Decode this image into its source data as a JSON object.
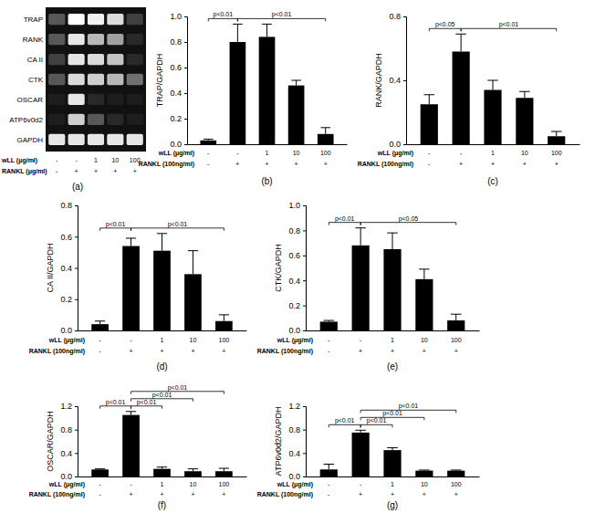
{
  "chart_data": [
    {
      "type": "gel",
      "panel": "(a)",
      "rows": [
        "TRAP",
        "RANK",
        "CA II",
        "CTK",
        "OSCAR",
        "ATP6v0d2",
        "GAPDH"
      ],
      "intensity": [
        [
          0.3,
          1,
          0.95,
          0.85,
          0.2
        ],
        [
          0.3,
          0.9,
          0.7,
          0.6,
          0.1
        ],
        [
          0.2,
          0.9,
          0.85,
          0.75,
          0.1
        ],
        [
          0.3,
          0.85,
          0.8,
          0.7,
          0.4
        ],
        [
          0.05,
          0.9,
          0.1,
          0.05,
          0.05
        ],
        [
          0.05,
          0.8,
          0.3,
          0.1,
          0.05
        ],
        [
          0.9,
          0.9,
          0.9,
          0.9,
          0.9
        ]
      ],
      "x_rows": [
        {
          "label": "wLL (μg/ml)",
          "values": [
            "-",
            "-",
            "1",
            "10",
            "100"
          ]
        },
        {
          "label": "RANKL (μg/ml)",
          "values": [
            "-",
            "+",
            "+",
            "+",
            "+"
          ]
        }
      ]
    },
    {
      "type": "bar",
      "panel": "(b)",
      "y_label": "TRAP/GAPDH",
      "color": "#000000",
      "values": [
        0.03,
        0.8,
        0.84,
        0.46,
        0.08
      ],
      "errors": [
        0.01,
        0.14,
        0.1,
        0.04,
        0.05
      ],
      "ylim": [
        0,
        1
      ],
      "yticks": [
        {
          "value": 0,
          "label": "0.0"
        },
        0.2,
        0.4,
        0.6,
        0.8,
        {
          "value": 1,
          "label": "1.0"
        }
      ],
      "x_rows": [
        {
          "label": "wLL (μg/ml)",
          "values": [
            "-",
            "-",
            "1",
            "10",
            "100"
          ]
        },
        {
          "label": "RANKL (100ng/ml)",
          "values": [
            "-",
            "+",
            "+",
            "+",
            "+"
          ]
        }
      ],
      "annotations": [
        {
          "text": "p<0.01",
          "from": 0,
          "to": 1
        },
        {
          "text": "p<0.01",
          "from": 1,
          "to": 4
        }
      ]
    },
    {
      "type": "bar",
      "panel": "(c)",
      "y_label": "RANK/GAPDH",
      "color": "#000000",
      "values": [
        0.25,
        0.58,
        0.34,
        0.29,
        0.05
      ],
      "errors": [
        0.06,
        0.11,
        0.06,
        0.04,
        0.03
      ],
      "ylim": [
        0,
        0.8
      ],
      "yticks": [
        {
          "value": 0,
          "label": "0.0"
        },
        0.4,
        0.8
      ],
      "x_rows": [
        {
          "label": "wLL (μg/ml)",
          "values": [
            "-",
            "-",
            "1",
            "10",
            "100"
          ]
        },
        {
          "label": "RANKL (100ng/ml)",
          "values": [
            "-",
            "+",
            "+",
            "+",
            "+"
          ]
        }
      ],
      "annotations": [
        {
          "text": "p<0.05",
          "from": 0,
          "to": 1
        },
        {
          "text": "p<0.01",
          "from": 1,
          "to": 4
        }
      ]
    },
    {
      "type": "bar",
      "panel": "(d)",
      "y_label": "CA II/GAPDH",
      "color": "#000000",
      "values": [
        0.04,
        0.54,
        0.51,
        0.36,
        0.06
      ],
      "errors": [
        0.02,
        0.05,
        0.11,
        0.15,
        0.04
      ],
      "ylim": [
        0,
        0.8
      ],
      "yticks": [
        {
          "value": 0,
          "label": "0.0"
        },
        0.2,
        0.4,
        0.6,
        0.8
      ],
      "x_rows": [
        {
          "label": "wLL (μg/ml)",
          "values": [
            "-",
            "-",
            "1",
            "10",
            "100"
          ]
        },
        {
          "label": "RANKL (100ng/ml)",
          "values": [
            "-",
            "+",
            "+",
            "+",
            "+"
          ]
        }
      ],
      "annotations": [
        {
          "text": "p<0.01",
          "from": 0,
          "to": 1
        },
        {
          "text": "p<0.01",
          "from": 1,
          "to": 4
        }
      ]
    },
    {
      "type": "bar",
      "panel": "(e)",
      "y_label": "CTK/GAPDH",
      "color": "#000000",
      "values": [
        0.07,
        0.68,
        0.65,
        0.41,
        0.08
      ],
      "errors": [
        0.01,
        0.14,
        0.13,
        0.08,
        0.05
      ],
      "ylim": [
        0,
        1
      ],
      "yticks": [
        {
          "value": 0,
          "label": "0.0"
        },
        0.2,
        0.4,
        0.6,
        0.8,
        {
          "value": 1,
          "label": "1.0"
        }
      ],
      "x_rows": [
        {
          "label": "wLL (μg/ml)",
          "values": [
            "-",
            "-",
            "1",
            "10",
            "100"
          ]
        },
        {
          "label": "RANKL (100ng/ml)",
          "values": [
            "-",
            "+",
            "+",
            "+",
            "+"
          ]
        }
      ],
      "annotations": [
        {
          "text": "p<0.01",
          "from": 0,
          "to": 1
        },
        {
          "text": "p<0.05",
          "from": 1,
          "to": 4
        }
      ]
    },
    {
      "type": "bar",
      "panel": "(f)",
      "y_label": "OSCAR/GAPDH",
      "color": "#000000",
      "values": [
        0.12,
        1.05,
        0.13,
        0.09,
        0.09
      ],
      "errors": [
        0.01,
        0.06,
        0.03,
        0.04,
        0.05
      ],
      "ylim": [
        0,
        1.2
      ],
      "yticks": [
        {
          "value": 0,
          "label": "0.0"
        },
        0.4,
        0.8,
        1.2
      ],
      "x_rows": [
        {
          "label": "wLL (μg/ml)",
          "values": [
            "-",
            "-",
            "1",
            "10",
            "100"
          ]
        },
        {
          "label": "RANKL (100ng/ml)",
          "values": [
            "-",
            "+",
            "+",
            "+",
            "+"
          ]
        }
      ],
      "annotations": [
        {
          "text": "p<0.01",
          "from": 0,
          "to": 1
        },
        {
          "text": "p<0.01",
          "from": 1,
          "to": 2
        },
        {
          "text": "p<0.01",
          "from": 1,
          "to": 3
        },
        {
          "text": "p<0.01",
          "from": 1,
          "to": 4
        }
      ]
    },
    {
      "type": "bar",
      "panel": "(g)",
      "y_label": "ATP6v0d2/GAPDH",
      "color": "#000000",
      "values": [
        0.12,
        0.75,
        0.45,
        0.1,
        0.1
      ],
      "errors": [
        0.09,
        0.04,
        0.04,
        0.01,
        0.01
      ],
      "ylim": [
        0,
        1.2
      ],
      "yticks": [
        {
          "value": 0,
          "label": "0.0"
        },
        0.4,
        0.8,
        1.2
      ],
      "x_rows": [
        {
          "label": "wLL (μg/ml)",
          "values": [
            "-",
            "-",
            "1",
            "10",
            "100"
          ]
        },
        {
          "label": "RANKL (100ng/ml)",
          "values": [
            "-",
            "+",
            "+",
            "+",
            "+"
          ]
        }
      ],
      "annotations": [
        {
          "text": "p<0.01",
          "from": 0,
          "to": 1
        },
        {
          "text": "p<0.01",
          "from": 1,
          "to": 2
        },
        {
          "text": "p<0.01",
          "from": 1,
          "to": 3
        },
        {
          "text": "p<0.01",
          "from": 1,
          "to": 4
        }
      ]
    }
  ]
}
